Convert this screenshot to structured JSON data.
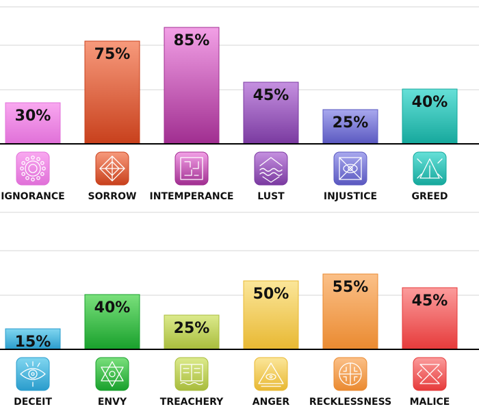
{
  "chart_data": [
    {
      "type": "bar",
      "title": "",
      "xlabel": "",
      "ylabel": "",
      "ylim": [
        0,
        100
      ],
      "grid": true,
      "value_labels": [
        "30%",
        "75%",
        "85%",
        "45%",
        "25%",
        "40%"
      ],
      "categories": [
        "IGNORANCE",
        "SORROW",
        "INTEMPERANCE",
        "LUST",
        "INJUSTICE",
        "GREED"
      ],
      "values": [
        30,
        75,
        85,
        45,
        25,
        40
      ],
      "colors": [
        [
          "#f9a8f0",
          "#e070d8"
        ],
        [
          "#f79a7c",
          "#c8401c"
        ],
        [
          "#f2a0e6",
          "#a02e90"
        ],
        [
          "#c590e0",
          "#7a3aa0"
        ],
        [
          "#a8a8ee",
          "#5a58c0"
        ],
        [
          "#66e0d8",
          "#16a89c"
        ]
      ],
      "icons": [
        "sun-icon",
        "compass-icon",
        "maze-icon",
        "mountain-waves-icon",
        "eye-diamond-icon",
        "triangle-rune-icon"
      ]
    },
    {
      "type": "bar",
      "title": "",
      "xlabel": "",
      "ylabel": "",
      "ylim": [
        0,
        100
      ],
      "grid": true,
      "value_labels": [
        "15%",
        "40%",
        "25%",
        "50%",
        "55%",
        "45%"
      ],
      "categories": [
        "DECEIT",
        "ENVY",
        "TREACHERY",
        "ANGER",
        "RECKLESSNESS",
        "MALICE"
      ],
      "values": [
        15,
        40,
        25,
        50,
        55,
        45
      ],
      "colors": [
        [
          "#80d6f0",
          "#2a9ccc"
        ],
        [
          "#7ae07c",
          "#18a02c"
        ],
        [
          "#dcea8c",
          "#a8bc3c"
        ],
        [
          "#fbe69a",
          "#e8b832"
        ],
        [
          "#fbc088",
          "#ea8a30"
        ],
        [
          "#fb9c9c",
          "#e63a3a"
        ]
      ],
      "icons": [
        "all-seeing-eye-icon",
        "star-triangle-icon",
        "scroll-icon",
        "pyramid-eye-icon",
        "celtic-cross-icon",
        "hourglass-rune-icon"
      ]
    }
  ]
}
